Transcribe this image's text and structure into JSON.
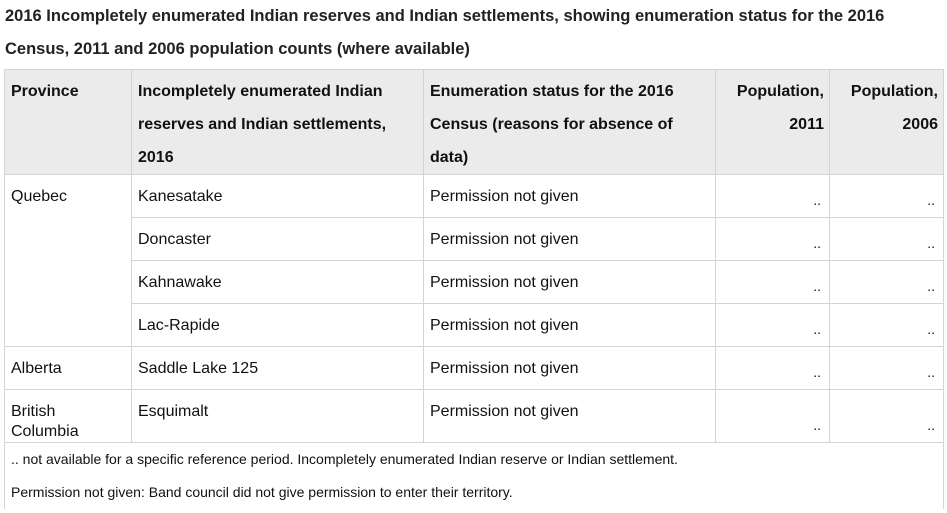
{
  "caption": "2016 Incompletely enumerated Indian reserves and Indian settlements, showing enumeration status for the 2016 Census, 2011 and 2006 population counts (where available)",
  "headers": {
    "province": "Province",
    "reserve": "Incompletely enumerated Indian reserves and Indian settlements, 2016",
    "status": "Enumeration status for the 2016 Census (reasons for absence of data)",
    "pop2011": "Population, 2011",
    "pop2006": "Population, 2006"
  },
  "rows": [
    {
      "province": "Quebec",
      "reserve": "Kanesatake",
      "status": "Permission not given",
      "pop2011": "..",
      "pop2006": ".."
    },
    {
      "province": "",
      "reserve": "Doncaster",
      "status": "Permission not given",
      "pop2011": "..",
      "pop2006": ".."
    },
    {
      "province": "",
      "reserve": "Kahnawake",
      "status": "Permission not given",
      "pop2011": "..",
      "pop2006": ".."
    },
    {
      "province": "",
      "reserve": "Lac-Rapide",
      "status": "Permission not given",
      "pop2011": "..",
      "pop2006": ".."
    },
    {
      "province": "Alberta",
      "reserve": "Saddle Lake 125",
      "status": "Permission not given",
      "pop2011": "..",
      "pop2006": ".."
    },
    {
      "province": "British Columbia",
      "reserve": "Esquimalt",
      "status": "Permission not given",
      "pop2011": "..",
      "pop2006": ".."
    }
  ],
  "notes": [
    ".. not available for a specific reference period. Incompletely enumerated Indian reserve or Indian settlement.",
    "Permission not given: Band council did not give permission to enter their territory."
  ]
}
